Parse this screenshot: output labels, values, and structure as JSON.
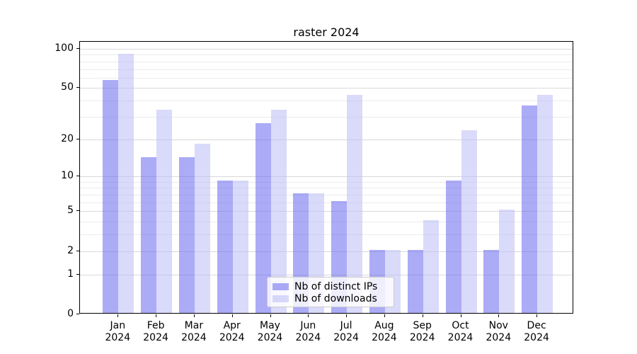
{
  "chart_data": {
    "type": "bar",
    "title": "raster 2024",
    "categories": [
      "Jan",
      "Feb",
      "Mar",
      "Apr",
      "May",
      "Jun",
      "Jul",
      "Aug",
      "Sep",
      "Oct",
      "Nov",
      "Dec"
    ],
    "category_year_label": "2024",
    "series": [
      {
        "name": "Nb of distinct IPs",
        "color": "#6666ee",
        "alpha": 0.55,
        "values": [
          56,
          14,
          14,
          9,
          26,
          7,
          6,
          2,
          2,
          9,
          2,
          36
        ]
      },
      {
        "name": "Nb of downloads",
        "color": "#bbbbf5",
        "alpha": 0.55,
        "values": [
          89,
          33,
          18,
          9,
          33,
          7,
          43,
          2,
          4,
          23,
          5,
          43
        ]
      }
    ],
    "xlabel": "",
    "ylabel": "",
    "y_scale": "log1p",
    "ylim": [
      0,
      113
    ],
    "y_ticks": [
      0,
      1,
      2,
      5,
      10,
      20,
      50,
      100
    ],
    "y_minor_gridlines": [
      3,
      4,
      6,
      7,
      8,
      9,
      30,
      40,
      60,
      70,
      80,
      90
    ],
    "grid": "both",
    "legend_position": "lower center",
    "colors": {
      "major_gridline": "#d9d9d9",
      "minor_gridline": "#ececec",
      "axis": "#000000",
      "background": "#ffffff"
    }
  }
}
